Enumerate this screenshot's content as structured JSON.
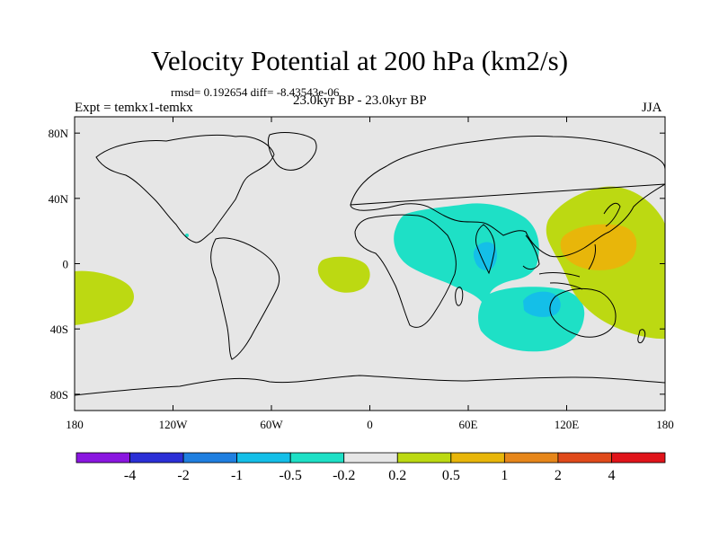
{
  "header": {
    "title": "Velocity Potential at 200 hPa (km2/s)",
    "stats": "rmsd= 0.192654 diff= -8.43543e-06",
    "experiment": "Expt = temkx1-temkx",
    "period": "23.0kyr BP - 23.0kyr BP",
    "season": "JJA"
  },
  "chart_data": {
    "type": "heatmap",
    "title": "Velocity Potential at 200 hPa (km2/s)",
    "subtitle": "23.0kyr BP - 23.0kyr BP",
    "projection": "cylindrical equidistant",
    "lon_range": [
      -180,
      180
    ],
    "lat_range": [
      -90,
      90
    ],
    "x_ticks": [
      {
        "value": -180,
        "label": "180"
      },
      {
        "value": -120,
        "label": "120W"
      },
      {
        "value": -60,
        "label": "60W"
      },
      {
        "value": 0,
        "label": "0"
      },
      {
        "value": 60,
        "label": "60E"
      },
      {
        "value": 120,
        "label": "120E"
      },
      {
        "value": 180,
        "label": "180"
      }
    ],
    "y_ticks": [
      {
        "value": 80,
        "label": "80N"
      },
      {
        "value": 40,
        "label": "40N"
      },
      {
        "value": 0,
        "label": "0"
      },
      {
        "value": -40,
        "label": "40S"
      },
      {
        "value": -80,
        "label": "80S"
      }
    ],
    "colorbar": {
      "labels": [
        "-4",
        "-2",
        "-1",
        "-0.5",
        "-0.2",
        "0.2",
        "0.5",
        "1",
        "2",
        "4"
      ],
      "colors": [
        "#8a16e0",
        "#2b2fd6",
        "#1f7fe0",
        "#14bfe8",
        "#1ee0c6",
        "#e6e6e6",
        "#bcd912",
        "#e8b60a",
        "#e6861a",
        "#e04a1a",
        "#e0141a"
      ]
    },
    "regions": [
      {
        "name": "indian-ocean-africa-negative",
        "range": "-0.5 to -0.2",
        "lon": [
          18,
          100
        ],
        "lat": [
          -35,
          38
        ],
        "color": "#1ee0c6"
      },
      {
        "name": "indian-ocean-southern-negative",
        "range": "-0.5 to -0.2",
        "lon": [
          68,
          130
        ],
        "lat": [
          -55,
          -15
        ],
        "color": "#1ee0c6"
      },
      {
        "name": "arabian-sea-min",
        "range": "-1 to -0.5",
        "lon": [
          63,
          78
        ],
        "lat": [
          -2,
          15
        ],
        "color": "#14bfe8"
      },
      {
        "name": "south-indian-ocean-min",
        "range": "-1 to -0.5",
        "lon": [
          97,
          117
        ],
        "lat": [
          -32,
          -18
        ],
        "color": "#14bfe8"
      },
      {
        "name": "west-pacific-positive",
        "range": "0.2 to 0.5",
        "lon": [
          112,
          180
        ],
        "lat": [
          -48,
          50
        ],
        "color": "#bcd912"
      },
      {
        "name": "west-pacific-max",
        "range": "0.5 to 1",
        "lon": [
          125,
          160
        ],
        "lat": [
          -5,
          27
        ],
        "color": "#e8b60a"
      },
      {
        "name": "south-atlantic-positive",
        "range": "0.2 to 0.5",
        "lon": [
          -30,
          0
        ],
        "lat": [
          -20,
          -8
        ],
        "color": "#bcd912"
      },
      {
        "name": "east-pacific-positive",
        "range": "0.2 to 0.5",
        "lon": [
          -180,
          -150
        ],
        "lat": [
          -42,
          -3
        ],
        "color": "#bcd912"
      }
    ]
  }
}
